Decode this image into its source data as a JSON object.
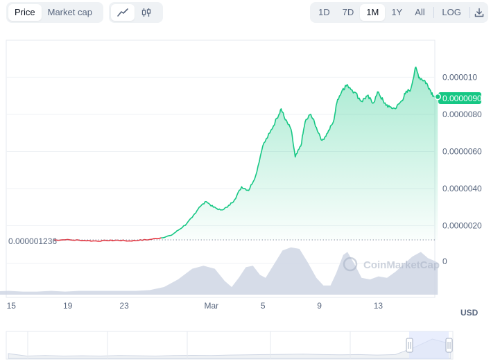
{
  "toolbar": {
    "view_tabs": [
      {
        "label": "Price",
        "active": true
      },
      {
        "label": "Market cap",
        "active": false
      }
    ],
    "chart_type_icons": [
      {
        "icon": "line-chart-icon",
        "active": true
      },
      {
        "icon": "candlestick-icon",
        "active": false
      }
    ],
    "ranges": [
      {
        "label": "1D",
        "active": false
      },
      {
        "label": "7D",
        "active": false
      },
      {
        "label": "1M",
        "active": true
      },
      {
        "label": "1Y",
        "active": false
      },
      {
        "label": "All",
        "active": false
      }
    ],
    "log_label": "LOG",
    "download_icon": "download-icon"
  },
  "watermark": "CoinMarketCap",
  "currency": "USD",
  "colors": {
    "up": "#16c784",
    "down": "#ea3943",
    "volume": "#cfd6e4",
    "accent_bg": "#eff2f5"
  },
  "chart_data": {
    "type": "line",
    "y_ticks": [
      "0.000010",
      "0.0000080",
      "0.0000060",
      "0.0000040",
      "0.0000020"
    ],
    "y_tick_values": [
      1e-05,
      8e-06,
      6e-06,
      4e-06,
      2e-06
    ],
    "ylim": [
      9e-07,
      1.08e-05
    ],
    "volume_zero_label": "0",
    "x_ticks": [
      "15",
      "19",
      "23",
      "Mar",
      "5",
      "9",
      "13"
    ],
    "x_tick_days": [
      15,
      19,
      23,
      29,
      33,
      37,
      41
    ],
    "start_price_label": "0.000001236",
    "start_price": 1.236e-06,
    "current_price_label": "0.0000090",
    "current_price": 9e-06,
    "price_series": [
      [
        18.2,
        1.23e-06
      ],
      [
        19,
        1.24e-06
      ],
      [
        20,
        1.22e-06
      ],
      [
        21,
        1.18e-06
      ],
      [
        22,
        1.19e-06
      ],
      [
        22.7,
        1.22e-06
      ],
      [
        23.5,
        1.18e-06
      ],
      [
        24.2,
        1.21e-06
      ],
      [
        25,
        1.26e-06
      ],
      [
        25.8,
        1.35e-06
      ],
      [
        26.5,
        1.48e-06
      ],
      [
        27,
        1.75e-06
      ],
      [
        27.6,
        2.1e-06
      ],
      [
        28,
        2.45e-06
      ],
      [
        28.5,
        3e-06
      ],
      [
        29,
        3.3e-06
      ],
      [
        29.5,
        3e-06
      ],
      [
        30,
        2.85e-06
      ],
      [
        30.5,
        3e-06
      ],
      [
        31,
        3.4e-06
      ],
      [
        31.5,
        4.1e-06
      ],
      [
        32,
        3.9e-06
      ],
      [
        32.5,
        4.7e-06
      ],
      [
        33,
        6.3e-06
      ],
      [
        33.5,
        7e-06
      ],
      [
        34,
        7.8e-06
      ],
      [
        34.3,
        8.3e-06
      ],
      [
        34.6,
        7.7e-06
      ],
      [
        35,
        7.2e-06
      ],
      [
        35.3,
        5.7e-06
      ],
      [
        35.7,
        6.3e-06
      ],
      [
        36,
        7.6e-06
      ],
      [
        36.4,
        8e-06
      ],
      [
        36.8,
        7.3e-06
      ],
      [
        37.2,
        6.6e-06
      ],
      [
        37.6,
        7e-06
      ],
      [
        38,
        7.6e-06
      ],
      [
        38.3,
        8.8e-06
      ],
      [
        38.7,
        9.4e-06
      ],
      [
        39,
        9.6e-06
      ],
      [
        39.5,
        9.2e-06
      ],
      [
        40,
        8.7e-06
      ],
      [
        40.4,
        9e-06
      ],
      [
        40.8,
        8.6e-06
      ],
      [
        41.2,
        9.2e-06
      ],
      [
        41.6,
        8.6e-06
      ],
      [
        42,
        8.4e-06
      ],
      [
        42.4,
        8.3e-06
      ],
      [
        42.8,
        8.7e-06
      ],
      [
        43.1,
        9.1e-06
      ],
      [
        43.5,
        9.4e-06
      ],
      [
        43.8,
        1.05e-05
      ],
      [
        44.1,
        1e-05
      ],
      [
        44.5,
        9.8e-06
      ],
      [
        44.8,
        9.4e-06
      ],
      [
        45.1,
        9e-06
      ],
      [
        45.4,
        8.95e-06
      ]
    ],
    "volume_series": [
      [
        13.5,
        0.04
      ],
      [
        15,
        0.05
      ],
      [
        16,
        0.04
      ],
      [
        17,
        0.04
      ],
      [
        18,
        0.05
      ],
      [
        19,
        0.04
      ],
      [
        20,
        0.05
      ],
      [
        21,
        0.05
      ],
      [
        22,
        0.05
      ],
      [
        23,
        0.05
      ],
      [
        24,
        0.05
      ],
      [
        25,
        0.06
      ],
      [
        26,
        0.1
      ],
      [
        27,
        0.2
      ],
      [
        28,
        0.34
      ],
      [
        28.8,
        0.38
      ],
      [
        29.6,
        0.34
      ],
      [
        30.3,
        0.18
      ],
      [
        30.8,
        0.1
      ],
      [
        31.3,
        0.22
      ],
      [
        31.8,
        0.36
      ],
      [
        32.3,
        0.38
      ],
      [
        32.8,
        0.26
      ],
      [
        33.2,
        0.22
      ],
      [
        33.8,
        0.4
      ],
      [
        34.4,
        0.58
      ],
      [
        35,
        0.62
      ],
      [
        35.6,
        0.6
      ],
      [
        36.2,
        0.42
      ],
      [
        36.8,
        0.22
      ],
      [
        37.3,
        0.12
      ],
      [
        37.8,
        0.12
      ],
      [
        38.2,
        0.28
      ],
      [
        38.7,
        0.52
      ],
      [
        39,
        0.56
      ],
      [
        39.5,
        0.4
      ],
      [
        40,
        0.22
      ],
      [
        40.6,
        0.2
      ],
      [
        41.2,
        0.24
      ],
      [
        41.8,
        0.22
      ],
      [
        42.4,
        0.3
      ],
      [
        43,
        0.4
      ],
      [
        43.6,
        0.5
      ],
      [
        44.2,
        0.56
      ],
      [
        44.7,
        0.48
      ],
      [
        45.2,
        0.44
      ],
      [
        45.4,
        0.42
      ]
    ],
    "navigator_series": [
      [
        0,
        0.2
      ],
      [
        1,
        0.1
      ],
      [
        2,
        0.12
      ],
      [
        3,
        0.1
      ],
      [
        4,
        0.11
      ],
      [
        5,
        0.1
      ],
      [
        6,
        0.12
      ],
      [
        7,
        0.11
      ],
      [
        8,
        0.1
      ],
      [
        9,
        0.12
      ],
      [
        10,
        0.13
      ],
      [
        11,
        0.12
      ],
      [
        12,
        0.14
      ],
      [
        13,
        0.15
      ],
      [
        14,
        0.16
      ],
      [
        15,
        0.17
      ],
      [
        16,
        0.18
      ],
      [
        17,
        0.16
      ],
      [
        18,
        0.15
      ],
      [
        19,
        0.16
      ],
      [
        20,
        0.14
      ],
      [
        21,
        0.16
      ],
      [
        22,
        0.45
      ],
      [
        23,
        0.8
      ],
      [
        24,
        0.6
      ]
    ]
  }
}
